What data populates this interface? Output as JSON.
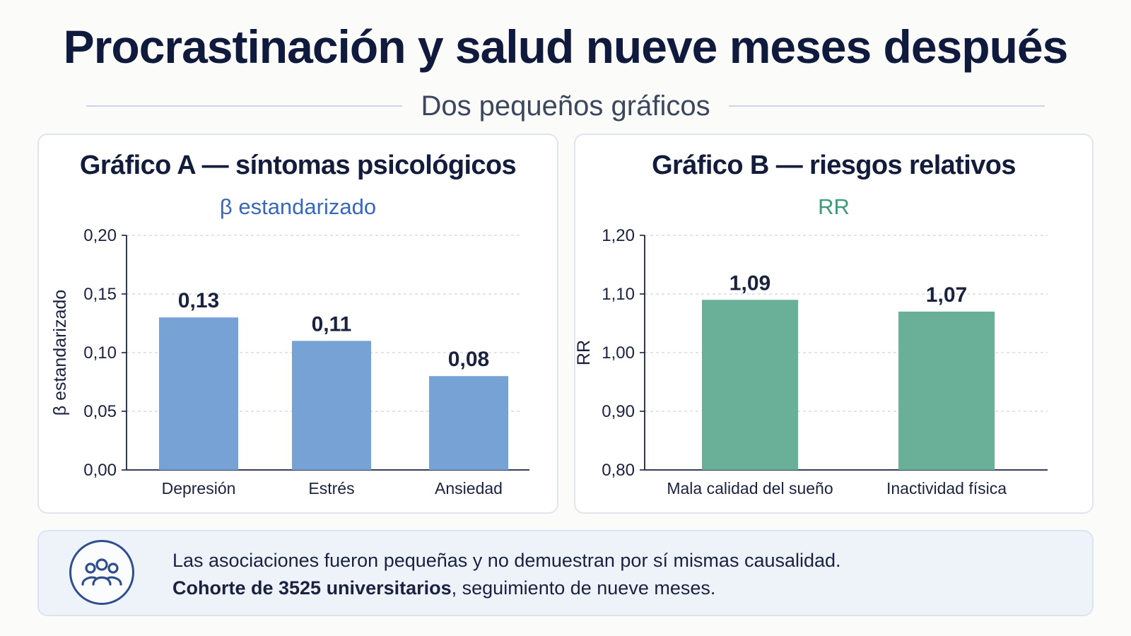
{
  "title": "Procrastinación y salud nueve meses después",
  "subtitle": "Dos pequeños gráficos",
  "chart_data": [
    {
      "type": "bar",
      "title": "Gráfico A — síntomas psicológicos",
      "subtitle": "β estandarizado",
      "ylabel": "β estandarizado",
      "xlabel": "",
      "categories": [
        "Depresión",
        "Estrés",
        "Ansiedad"
      ],
      "values": [
        0.13,
        0.11,
        0.08
      ],
      "value_labels": [
        "0,13",
        "0,11",
        "0,08"
      ],
      "ylim": [
        0,
        0.2
      ],
      "yticks": [
        0,
        0.05,
        0.1,
        0.15,
        0.2
      ],
      "ytick_labels": [
        "0,00",
        "0,05",
        "0,10",
        "0,15",
        "0,20"
      ],
      "grid": true,
      "color": "#77a2d6"
    },
    {
      "type": "bar",
      "title": "Gráfico B — riesgos relativos",
      "subtitle": "RR",
      "ylabel": "RR",
      "xlabel": "",
      "categories": [
        "Mala calidad del sueño",
        "Inactividad física"
      ],
      "values": [
        1.09,
        1.07
      ],
      "value_labels": [
        "1,09",
        "1,07"
      ],
      "ylim": [
        0.8,
        1.2
      ],
      "yticks": [
        0.8,
        0.9,
        1.0,
        1.1,
        1.2
      ],
      "ytick_labels": [
        "0,80",
        "0,90",
        "1,00",
        "1,10",
        "1,20"
      ],
      "grid": true,
      "color": "#6aaf98"
    }
  ],
  "note": {
    "icon": "people-group-icon",
    "line1": "Las asociaciones fueron pequeñas y no demuestran por sí mismas causalidad.",
    "line2_bold": "Cohorte de 3525 universitarios",
    "line2_rest": ", seguimiento de nueve meses."
  }
}
